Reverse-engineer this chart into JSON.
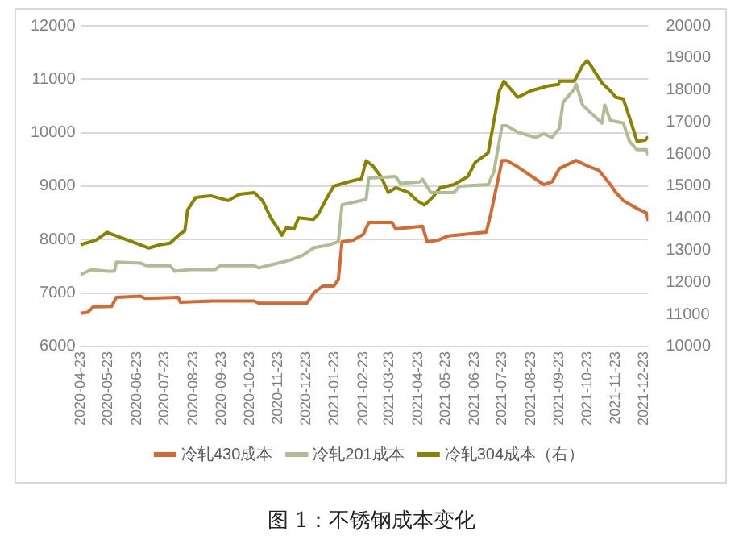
{
  "chart_data": {
    "type": "line",
    "annotations": [
      "图 1：不锈钢成本变化"
    ],
    "xlim": [
      "2020-04-23",
      "2021-12-28"
    ],
    "xticks": [
      {
        "value": "2020-04-23",
        "label": "2020-04-23"
      },
      {
        "value": "2020-05-23",
        "label": "2020-05-23"
      },
      {
        "value": "2020-06-23",
        "label": "2020-06-23"
      },
      {
        "value": "2020-07-23",
        "label": "2020-07-23"
      },
      {
        "value": "2020-08-23",
        "label": "2020-08-23"
      },
      {
        "value": "2020-09-23",
        "label": "2020-09-23"
      },
      {
        "value": "2020-10-23",
        "label": "2020-10-23"
      },
      {
        "value": "2020-11-23",
        "label": "2020-11-23"
      },
      {
        "value": "2020-12-23",
        "label": "2020-12-23"
      },
      {
        "value": "2021-01-23",
        "label": "2021-01-23"
      },
      {
        "value": "2021-02-23",
        "label": "2021-02-23"
      },
      {
        "value": "2021-03-23",
        "label": "2021-03-23"
      },
      {
        "value": "2021-04-23",
        "label": "2021-04-23"
      },
      {
        "value": "2021-05-23",
        "label": "2021-05-23"
      },
      {
        "value": "2021-06-23",
        "label": "2021-06-23"
      },
      {
        "value": "2021-07-23",
        "label": "2021-07-23"
      },
      {
        "value": "2021-08-23",
        "label": "2021-08-23"
      },
      {
        "value": "2021-09-23",
        "label": "2021-09-23"
      },
      {
        "value": "2021-10-23",
        "label": "2021-10-23"
      },
      {
        "value": "2021-11-23",
        "label": "2021-11-23"
      },
      {
        "value": "2021-12-23",
        "label": "2021-12-23"
      }
    ],
    "ylim": [
      6000,
      12000
    ],
    "yticks": [
      6000,
      7000,
      8000,
      9000,
      10000,
      11000,
      12000
    ],
    "y2lim": [
      10000,
      20000
    ],
    "y2ticks": [
      10000,
      11000,
      12000,
      13000,
      14000,
      15000,
      16000,
      17000,
      18000,
      19000,
      20000
    ],
    "grid": "y",
    "legend": "bottom",
    "marker": "none",
    "series": [
      {
        "name": "冷轧430成本",
        "color": "#d46a32",
        "x": [
          "2020-04-23",
          "2020-05-01",
          "2020-05-07",
          "2020-05-27",
          "2020-06-01",
          "2020-06-27",
          "2020-07-02",
          "2020-08-07",
          "2020-08-09",
          "2020-09-13",
          "2020-10-28",
          "2020-11-02",
          "2020-12-24",
          "2021-01-01",
          "2021-01-10",
          "2021-01-22",
          "2021-01-27",
          "2021-01-31",
          "2021-02-12",
          "2021-02-23",
          "2021-03-01",
          "2021-03-26",
          "2021-03-30",
          "2021-04-28",
          "2021-05-03",
          "2021-05-15",
          "2021-05-26",
          "2021-07-06",
          "2021-07-11",
          "2021-07-23",
          "2021-07-28",
          "2021-08-09",
          "2021-09-06",
          "2021-09-15",
          "2021-09-23",
          "2021-10-11",
          "2021-10-23",
          "2021-11-05",
          "2021-11-17",
          "2021-11-23",
          "2021-12-01",
          "2021-12-16",
          "2021-12-26",
          "2021-12-28"
        ],
        "values": [
          6620,
          6640,
          6740,
          6750,
          6920,
          6940,
          6900,
          6920,
          6830,
          6850,
          6850,
          6810,
          6810,
          7010,
          7130,
          7130,
          7250,
          7960,
          7990,
          8100,
          8320,
          8320,
          8200,
          8250,
          7960,
          7990,
          8070,
          8140,
          8500,
          9480,
          9480,
          9360,
          9030,
          9080,
          9330,
          9480,
          9380,
          9290,
          9030,
          8880,
          8730,
          8580,
          8500,
          8350
        ]
      },
      {
        "name": "冷轧201成本",
        "color": "#b1bc94",
        "x": [
          "2020-04-23",
          "2020-05-05",
          "2020-05-22",
          "2020-05-30",
          "2020-06-01",
          "2020-06-27",
          "2020-07-04",
          "2020-07-29",
          "2020-08-03",
          "2020-08-20",
          "2020-09-16",
          "2020-09-21",
          "2020-10-28",
          "2020-11-02",
          "2020-11-11",
          "2020-12-05",
          "2020-12-19",
          "2021-01-01",
          "2021-01-17",
          "2021-01-27",
          "2021-01-31",
          "2021-02-26",
          "2021-03-01",
          "2021-03-30",
          "2021-04-04",
          "2021-04-25",
          "2021-04-28",
          "2021-05-07",
          "2021-06-01",
          "2021-06-07",
          "2021-07-08",
          "2021-07-14",
          "2021-07-23",
          "2021-07-28",
          "2021-08-09",
          "2021-08-28",
          "2021-09-06",
          "2021-09-15",
          "2021-09-23",
          "2021-09-27",
          "2021-10-09",
          "2021-10-11",
          "2021-10-18",
          "2021-10-27",
          "2021-11-08",
          "2021-11-11",
          "2021-11-17",
          "2021-12-01",
          "2021-12-08",
          "2021-12-16",
          "2021-12-26",
          "2021-12-28"
        ],
        "values": [
          7340,
          7440,
          7410,
          7410,
          7580,
          7560,
          7510,
          7510,
          7410,
          7440,
          7440,
          7510,
          7510,
          7470,
          7510,
          7610,
          7700,
          7850,
          7900,
          7960,
          8650,
          8750,
          9150,
          9180,
          9050,
          9080,
          9130,
          8880,
          8880,
          9000,
          9030,
          9260,
          10130,
          10130,
          10010,
          9910,
          9980,
          9910,
          10080,
          10570,
          10810,
          10910,
          10520,
          10370,
          10180,
          10520,
          10230,
          10180,
          9830,
          9680,
          9680,
          9580
        ]
      },
      {
        "name": "冷轧304成本（右）",
        "color": "#8a8200",
        "axis": "y2",
        "x": [
          "2020-04-23",
          "2020-05-10",
          "2020-05-22",
          "2020-05-30",
          "2020-06-18",
          "2020-07-06",
          "2020-07-18",
          "2020-07-29",
          "2020-08-09",
          "2020-08-14",
          "2020-08-17",
          "2020-08-26",
          "2020-09-11",
          "2020-09-30",
          "2020-10-12",
          "2020-10-28",
          "2020-11-06",
          "2020-11-15",
          "2020-11-23",
          "2020-11-27",
          "2020-12-02",
          "2020-12-10",
          "2020-12-15",
          "2020-12-31",
          "2021-01-05",
          "2021-01-14",
          "2021-01-22",
          "2021-02-09",
          "2021-02-21",
          "2021-02-26",
          "2021-03-05",
          "2021-03-14",
          "2021-03-22",
          "2021-03-30",
          "2021-04-13",
          "2021-04-22",
          "2021-04-30",
          "2021-05-09",
          "2021-05-17",
          "2021-06-01",
          "2021-06-16",
          "2021-06-24",
          "2021-07-08",
          "2021-07-20",
          "2021-07-25",
          "2021-08-09",
          "2021-08-23",
          "2021-09-10",
          "2021-09-22",
          "2021-09-23",
          "2021-10-09",
          "2021-10-18",
          "2021-10-23",
          "2021-10-27",
          "2021-11-08",
          "2021-11-17",
          "2021-11-23",
          "2021-12-01",
          "2021-12-09",
          "2021-12-16",
          "2021-12-25",
          "2021-12-28"
        ],
        "values": [
          13170,
          13320,
          13560,
          13470,
          13270,
          13070,
          13170,
          13220,
          13510,
          13610,
          14260,
          14650,
          14700,
          14550,
          14750,
          14800,
          14550,
          14010,
          13660,
          13470,
          13710,
          13660,
          14010,
          13960,
          14110,
          14600,
          15000,
          15150,
          15230,
          15790,
          15640,
          15300,
          14800,
          14950,
          14800,
          14550,
          14410,
          14650,
          14950,
          15050,
          15300,
          15740,
          16040,
          17970,
          18270,
          17770,
          17970,
          18120,
          18170,
          18270,
          18270,
          18760,
          18910,
          18760,
          18220,
          17970,
          17770,
          17720,
          17030,
          16390,
          16440,
          16540
        ]
      }
    ]
  }
}
